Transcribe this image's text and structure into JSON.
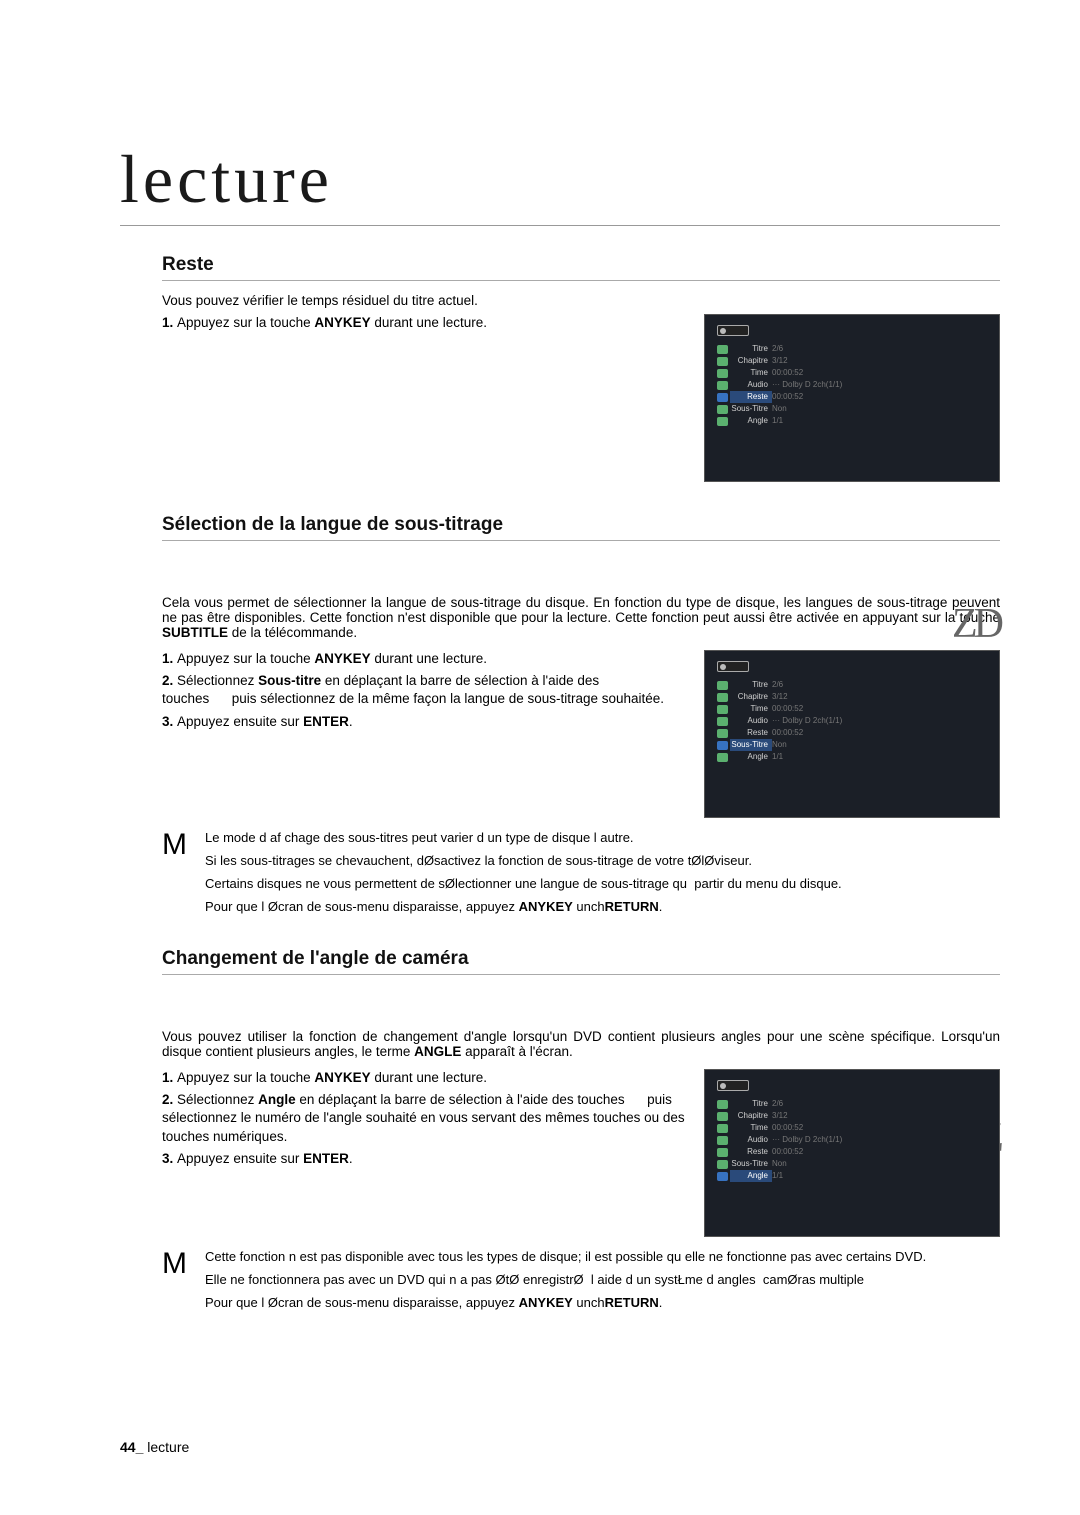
{
  "page": {
    "chapter_title": "lecture",
    "number": "44_",
    "footer_word": "lecture"
  },
  "reste": {
    "heading": "Reste",
    "intro": "Vous pouvez vérifier le temps résiduel du titre actuel.",
    "steps": [
      "Appuyez sur la touche <b>ANYKEY</b> durant une lecture."
    ]
  },
  "subtitle": {
    "heading": "Sélection de la langue de sous-titrage",
    "badge": "ZD",
    "intro": "Cela vous permet de sélectionner la langue de sous-titrage du disque. En fonction du type de disque, les langues de sous-titrage peuvent ne pas être disponibles. Cette fonction n'est disponible que pour la lecture. Cette fonction peut aussi être activée en appuyant sur la touche <b>SUBTITLE</b> de la télécommande.",
    "steps": [
      "Appuyez sur la touche <b>ANYKEY</b> durant une lecture.",
      "Sélectionnez <b>Sous-titre</b> en déplaçant la barre de sélection à l'aide des touches&nbsp;&nbsp;&nbsp;&nbsp;&nbsp;&nbsp;puis sélectionnez de la même façon la langue de sous-titrage souhaitée.",
      "Appuyez ensuite sur <b>ENTER</b>."
    ],
    "notes": [
      "Le mode d af chage des sous-titres peut varier d un type de disque l autre.",
      "Si les sous-titrages se chevauchent, dØsactivez la fonction de sous-titrage de votre tØlØviseur.",
      "Certains disques ne vous permettent de sØlectionner une langue de sous-titrage qu&nbsp;&nbsp;partir du menu du disque.",
      "Pour que l Øcran de sous-menu disparaisse, appuyez <b>ANYKEY</b> unch<b>RETURN</b>."
    ]
  },
  "angle": {
    "heading": "Changement de l'angle de caméra",
    "badge": "Z",
    "intro": "Vous pouvez utiliser la fonction de changement d'angle lorsqu'un DVD contient plusieurs angles pour une scène spécifique. Lorsqu'un disque contient plusieurs angles, le terme <b>ANGLE</b> apparaît à l'écran.",
    "steps": [
      "Appuyez sur la touche <b>ANYKEY</b> durant une lecture.",
      "Sélectionnez <b>Angle</b> en déplaçant la barre de sélection à l'aide des touches&nbsp;&nbsp;&nbsp;&nbsp;&nbsp;&nbsp;puis sélectionnez le numéro de l'angle souhaité en vous servant des mêmes touches ou des touches numériques.",
      "Appuyez ensuite sur <b>ENTER</b>."
    ],
    "notes": [
      "Cette fonction n est pas disponible avec tous les types de disque; il est possible qu elle ne fonctionne pas avec certains DVD.",
      "Elle ne fonctionnera pas avec un DVD qui n a pas ØtØ enregistrØ&nbsp;&nbsp;l aide d un systŁme d angles&nbsp;&nbsp;camØras multiple",
      "Pour que l Øcran de sous-menu disparaisse, appuyez <b>ANYKEY</b> unch<b>RETURN</b>."
    ]
  },
  "osd_reste": {
    "active": "Reste",
    "rows": [
      {
        "label": "Titre",
        "val": "2/6"
      },
      {
        "label": "Chapitre",
        "val": "3/12"
      },
      {
        "label": "Time",
        "val": "00:00:52"
      },
      {
        "label": "Audio",
        "val": "··· Dolby D 2ch(1/1)"
      },
      {
        "label": "Reste",
        "val": "00:00:52"
      },
      {
        "label": "Sous-Titre",
        "val": "Non"
      },
      {
        "label": "Angle",
        "val": "1/1"
      }
    ]
  },
  "osd_subtitle": {
    "active": "Sous-Titre",
    "rows": [
      {
        "label": "Titre",
        "val": "2/6"
      },
      {
        "label": "Chapitre",
        "val": "3/12"
      },
      {
        "label": "Time",
        "val": "00:00:52"
      },
      {
        "label": "Audio",
        "val": "··· Dolby D 2ch(1/1)"
      },
      {
        "label": "Reste",
        "val": "00:00:52"
      },
      {
        "label": "Sous-Titre",
        "val": "Non"
      },
      {
        "label": "Angle",
        "val": "1/1"
      }
    ]
  },
  "osd_angle": {
    "active": "Angle",
    "rows": [
      {
        "label": "Titre",
        "val": "2/6"
      },
      {
        "label": "Chapitre",
        "val": "3/12"
      },
      {
        "label": "Time",
        "val": "00:00:52"
      },
      {
        "label": "Audio",
        "val": "··· Dolby D 2ch(1/1)"
      },
      {
        "label": "Reste",
        "val": "00:00:52"
      },
      {
        "label": "Sous-Titre",
        "val": "Non"
      },
      {
        "label": "Angle",
        "val": "1/1"
      }
    ]
  },
  "note_marker": "M",
  "colors": {
    "page_bg": "#ffffff",
    "text": "#000000",
    "rule": "#999999",
    "screenshot_bg": "#1b1f27",
    "osd_active_bg": "#2a4a7a",
    "osd_icon": "#5bb06f",
    "osd_text": "#cfcfcf",
    "osd_dim": "#777777",
    "badge_grey": "#666666"
  },
  "fonts": {
    "chapter_title_pt": 68,
    "heading_pt": 19,
    "body_pt": 13.5,
    "note_pt": 13,
    "badge_pt": 42
  }
}
